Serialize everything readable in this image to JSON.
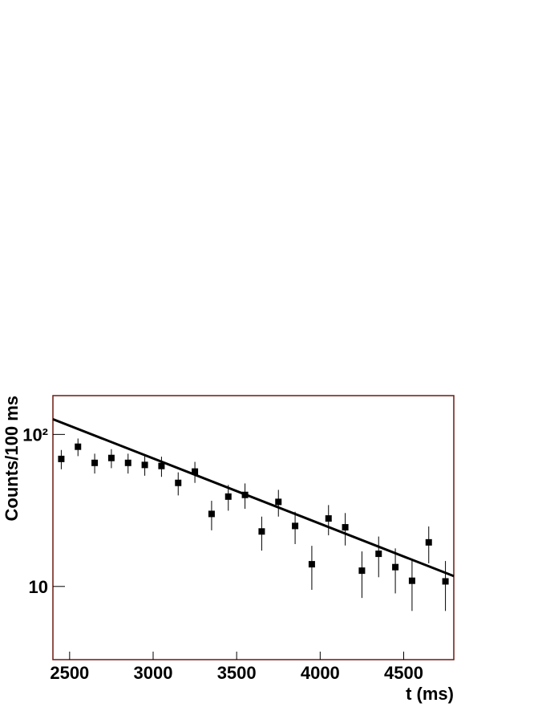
{
  "chart_data": {
    "type": "scatter",
    "xlabel": "t (ms)",
    "ylabel": "Counts/100 ms",
    "xlim": [
      2400,
      4800
    ],
    "ylim": [
      3.3,
      180
    ],
    "log_y": true,
    "xticks": [
      2500,
      3000,
      3500,
      4000,
      4500
    ],
    "yticks": [
      10,
      {
        "value": 100,
        "label": "10²"
      }
    ],
    "frame_color": "#6b1a10",
    "series": [
      {
        "color": "#000000",
        "x": [
          2450,
          2550,
          2650,
          2750,
          2850,
          2950,
          3050,
          3150,
          3250,
          3350,
          3450,
          3550,
          3650,
          3750,
          3850,
          3950,
          4050,
          4150,
          4250,
          4350,
          4450,
          4550,
          4650,
          4750
        ],
        "values": [
          69,
          83,
          65,
          70,
          65,
          63,
          62,
          48,
          57,
          30,
          39,
          40,
          23,
          36,
          25,
          14,
          28,
          24.5,
          12.7,
          16.4,
          13.4,
          10.9,
          19.5,
          10.8
        ],
        "errors": [
          10,
          11,
          9.7,
          10,
          9.7,
          9.5,
          9.4,
          8.3,
          9,
          6.6,
          7.5,
          7.6,
          5.8,
          7.2,
          6,
          4.5,
          6.3,
          5.9,
          4.3,
          4.9,
          4.4,
          4,
          5.3,
          3.9
        ]
      },
      {
        "type": "line",
        "color": "#000000",
        "x": [
          2400,
          4800
        ],
        "values": [
          126,
          11.7
        ]
      }
    ]
  }
}
